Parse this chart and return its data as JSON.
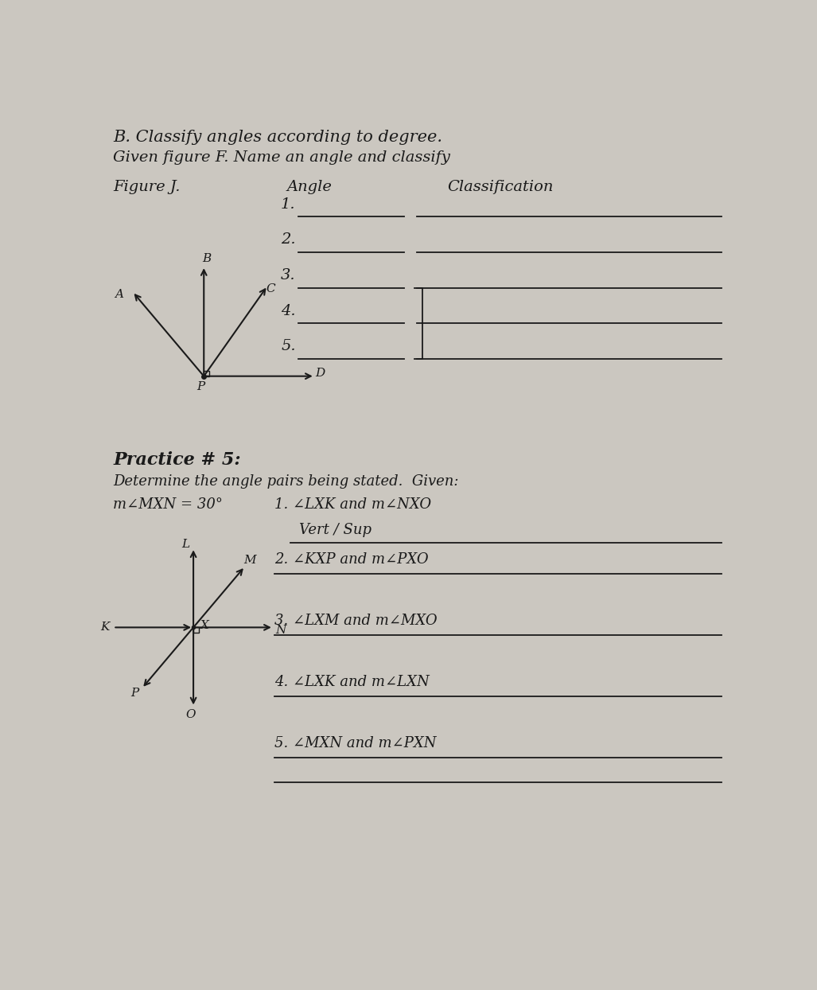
{
  "bg_color": "#cbc7c0",
  "text_color": "#1a1a1a",
  "title_line1": "B. Classify angles according to degree.",
  "title_line2": "Given figure F. Name an angle and classify",
  "section1_label": "Figure J.",
  "section1_col2": "Angle",
  "section1_col3": "Classification",
  "rows": [
    "1.",
    "2.",
    "3.",
    "4.",
    "5."
  ],
  "practice_title": "Practice # 5:",
  "practice_subtitle": "Determine the angle pairs being stated.  Given:",
  "given_info": "m∠MXN = 30°",
  "prob1": "1. ∠LXK and m∠NXO",
  "ans1": "Vert / Sup",
  "prob2": "2. ∠KXP and m∠PXO",
  "prob3": "3. ∠LXM and m∠MXO",
  "prob4": "4. ∠LXK and m∠LXN",
  "prob5": "5. ∠MXN and m∠PXN"
}
